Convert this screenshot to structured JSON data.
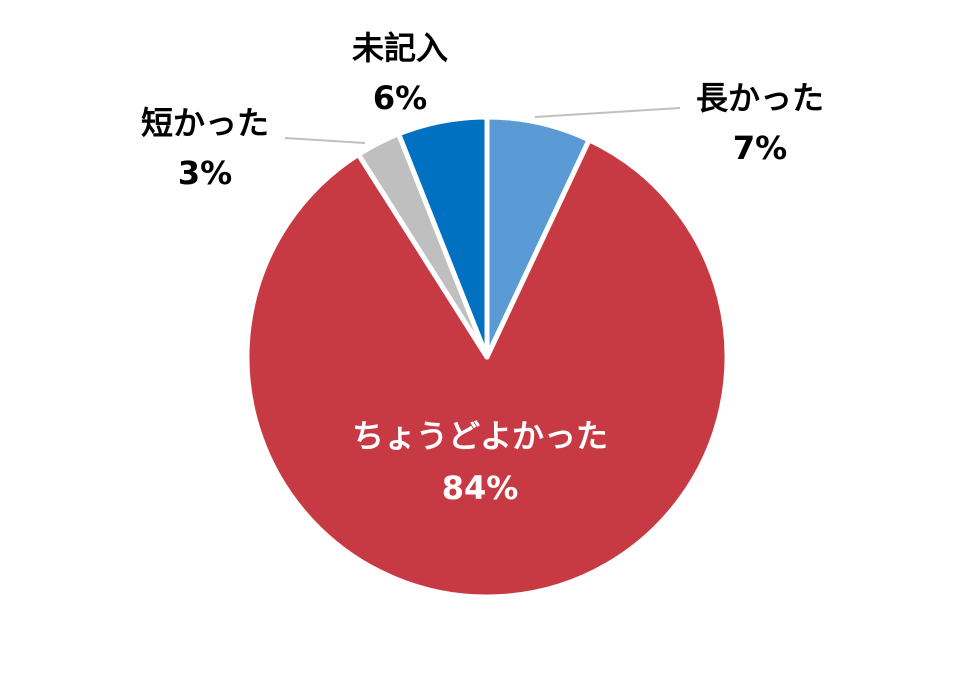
{
  "chart_data": {
    "type": "pie",
    "categories": [
      "長かった",
      "ちょうどよかった",
      "短かった",
      "未記入"
    ],
    "values": [
      7,
      84,
      3,
      6
    ],
    "value_labels": [
      "7%",
      "84%",
      "3%",
      "6%"
    ],
    "colors": [
      "#5b9bd5",
      "#c83a43",
      "#bfbfbf",
      "#0070c0"
    ]
  }
}
